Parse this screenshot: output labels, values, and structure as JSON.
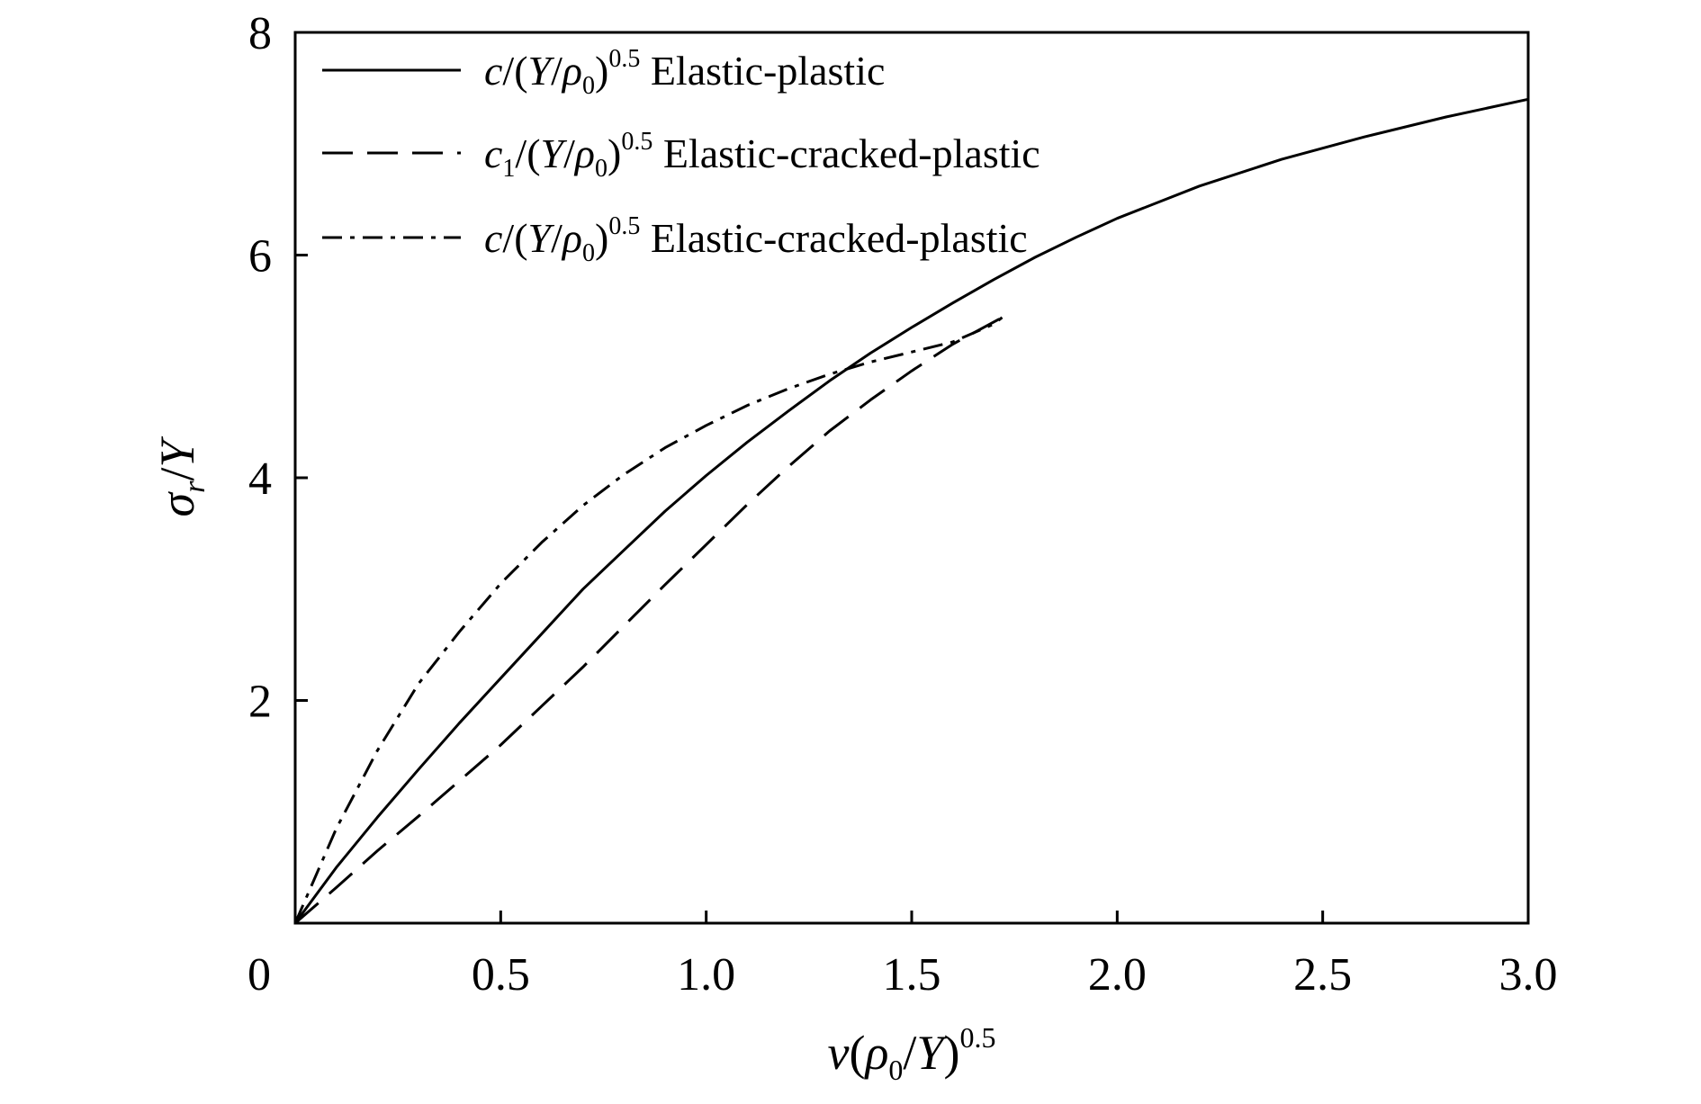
{
  "chart_data": {
    "type": "line",
    "xlabel": "v(ρ0/Y)0.5",
    "ylabel": "σr/Y",
    "xlim": [
      0,
      3.0
    ],
    "ylim": [
      0,
      8
    ],
    "x_ticks": [
      "0",
      "0.5",
      "1.0",
      "1.5",
      "2.0",
      "2.5",
      "3.0"
    ],
    "y_ticks": [
      "2",
      "4",
      "6",
      "8"
    ],
    "grid": false,
    "legend_position": "top-left",
    "series": [
      {
        "name": "c/(Y/ρ0)0.5 Elastic-plastic",
        "style": "solid",
        "x": [
          0,
          0.1,
          0.2,
          0.3,
          0.4,
          0.5,
          0.6,
          0.7,
          0.8,
          0.9,
          1.0,
          1.1,
          1.2,
          1.3,
          1.4,
          1.5,
          1.6,
          1.7,
          1.8,
          1.9,
          2.0,
          2.2,
          2.4,
          2.6,
          2.8,
          3.0
        ],
        "y": [
          0,
          0.5,
          0.95,
          1.38,
          1.8,
          2.2,
          2.6,
          3.0,
          3.35,
          3.7,
          4.02,
          4.32,
          4.6,
          4.87,
          5.12,
          5.35,
          5.57,
          5.78,
          5.98,
          6.16,
          6.33,
          6.62,
          6.86,
          7.06,
          7.24,
          7.4
        ]
      },
      {
        "name": "c1/(Y/ρ0)0.5 Elastic-cracked-plastic",
        "style": "dashed",
        "x": [
          0,
          0.1,
          0.2,
          0.3,
          0.4,
          0.5,
          0.6,
          0.7,
          0.8,
          0.9,
          1.0,
          1.1,
          1.2,
          1.3,
          1.4,
          1.5,
          1.6,
          1.7,
          1.72
        ],
        "y": [
          0,
          0.32,
          0.65,
          0.96,
          1.28,
          1.6,
          1.95,
          2.3,
          2.67,
          3.04,
          3.4,
          3.76,
          4.1,
          4.42,
          4.7,
          4.96,
          5.2,
          5.4,
          5.44
        ]
      },
      {
        "name": "c/(Y/ρ0)0.5 Elastic-cracked-plastic",
        "style": "dashdot",
        "x": [
          0,
          0.1,
          0.2,
          0.3,
          0.4,
          0.5,
          0.6,
          0.7,
          0.8,
          0.9,
          1.0,
          1.1,
          1.2,
          1.3,
          1.4,
          1.5,
          1.6,
          1.7,
          1.72
        ],
        "y": [
          0,
          0.85,
          1.55,
          2.15,
          2.62,
          3.05,
          3.42,
          3.75,
          4.03,
          4.27,
          4.47,
          4.65,
          4.8,
          4.93,
          5.04,
          5.13,
          5.22,
          5.38,
          5.44
        ]
      }
    ]
  }
}
